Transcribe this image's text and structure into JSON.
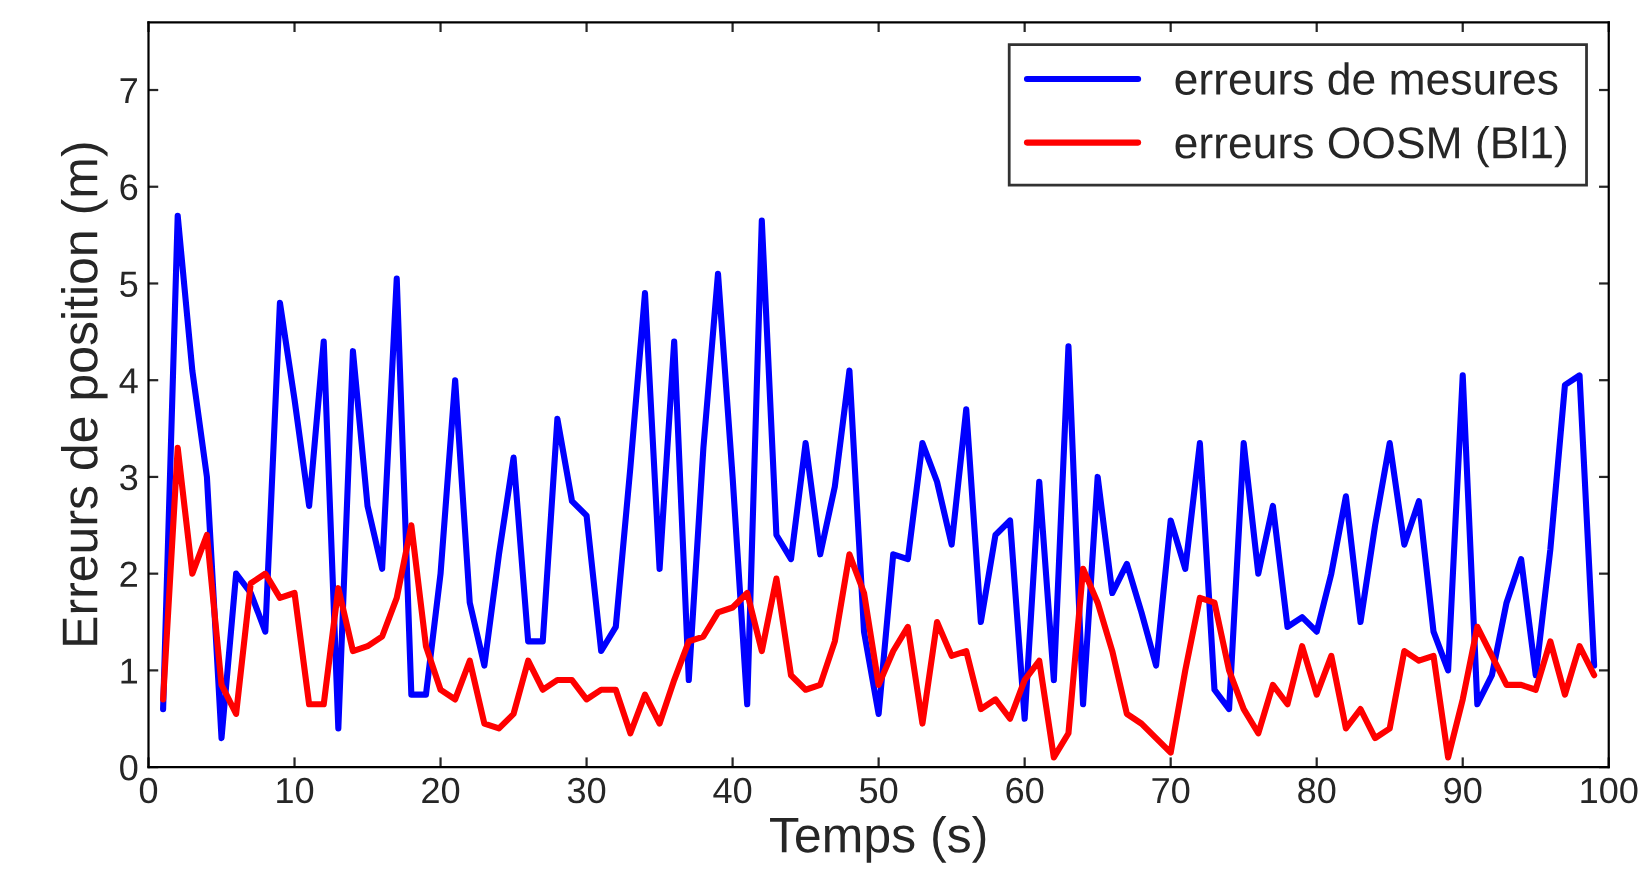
{
  "chart_data": {
    "type": "line",
    "xlabel": "Temps (s)",
    "ylabel": "Erreurs de position (m)",
    "x": [
      1,
      2,
      3,
      4,
      5,
      6,
      7,
      8,
      9,
      10,
      11,
      12,
      13,
      14,
      15,
      16,
      17,
      18,
      19,
      20,
      21,
      22,
      23,
      24,
      25,
      26,
      27,
      28,
      29,
      30,
      31,
      32,
      33,
      34,
      35,
      36,
      37,
      38,
      39,
      40,
      41,
      42,
      43,
      44,
      45,
      46,
      47,
      48,
      49,
      50,
      51,
      52,
      53,
      54,
      55,
      56,
      57,
      58,
      59,
      60,
      61,
      62,
      63,
      64,
      65,
      66,
      67,
      68,
      69,
      70,
      71,
      72,
      73,
      74,
      75,
      76,
      77,
      78,
      79,
      80,
      81,
      82,
      83,
      84,
      85,
      86,
      87,
      88,
      89,
      90,
      91,
      92,
      93,
      94,
      95,
      96,
      97,
      98,
      99
    ],
    "series": [
      {
        "name": "erreurs de mesures",
        "color": "#0000ff",
        "values": [
          0.6,
          5.7,
          4.1,
          3.0,
          0.3,
          2.0,
          1.8,
          1.4,
          4.8,
          3.8,
          2.7,
          4.4,
          0.4,
          4.3,
          2.7,
          2.05,
          5.05,
          0.75,
          0.75,
          2.0,
          4.0,
          1.7,
          1.05,
          2.2,
          3.2,
          1.3,
          1.3,
          3.6,
          2.75,
          2.6,
          1.2,
          1.45,
          3.1,
          4.9,
          2.05,
          4.4,
          0.9,
          3.3,
          5.1,
          3.0,
          0.65,
          5.65,
          2.4,
          2.15,
          3.35,
          2.2,
          2.9,
          4.1,
          1.4,
          0.55,
          2.2,
          2.15,
          3.35,
          2.95,
          2.3,
          3.7,
          1.5,
          2.4,
          2.55,
          0.5,
          2.95,
          0.9,
          4.35,
          0.65,
          3.0,
          1.8,
          2.1,
          1.6,
          1.05,
          2.55,
          2.05,
          3.35,
          0.8,
          0.6,
          3.35,
          2.0,
          2.7,
          1.45,
          1.55,
          1.4,
          2.0,
          2.8,
          1.5,
          2.5,
          3.35,
          2.3,
          2.75,
          1.4,
          1.0,
          4.05,
          0.65,
          0.95,
          1.7,
          2.15,
          0.95,
          2.25,
          3.95,
          4.05,
          1.05
        ]
      },
      {
        "name": "erreurs OOSM (Bl1)",
        "color": "#ff0000",
        "values": [
          0.7,
          3.3,
          2.0,
          2.4,
          0.85,
          0.55,
          1.9,
          2.0,
          1.75,
          1.8,
          0.65,
          0.65,
          1.85,
          1.2,
          1.25,
          1.35,
          1.75,
          2.5,
          1.25,
          0.8,
          0.7,
          1.1,
          0.45,
          0.4,
          0.55,
          1.1,
          0.8,
          0.9,
          0.9,
          0.7,
          0.8,
          0.8,
          0.35,
          0.75,
          0.45,
          0.9,
          1.3,
          1.35,
          1.6,
          1.65,
          1.8,
          1.2,
          1.95,
          0.95,
          0.8,
          0.85,
          1.3,
          2.2,
          1.8,
          0.85,
          1.2,
          1.45,
          0.45,
          1.5,
          1.15,
          1.2,
          0.6,
          0.7,
          0.5,
          0.9,
          1.1,
          0.1,
          0.35,
          2.05,
          1.7,
          1.2,
          0.55,
          0.45,
          0.3,
          0.15,
          1.0,
          1.75,
          1.7,
          1.0,
          0.6,
          0.35,
          0.85,
          0.65,
          1.25,
          0.75,
          1.15,
          0.4,
          0.6,
          0.3,
          0.4,
          1.2,
          1.1,
          1.15,
          0.1,
          0.7,
          1.45,
          1.15,
          0.85,
          0.85,
          0.8,
          1.3,
          0.75,
          1.25,
          0.95
        ]
      }
    ],
    "xlim": [
      0,
      100
    ],
    "xticks": [
      0,
      10,
      20,
      30,
      40,
      50,
      60,
      70,
      80,
      90,
      100
    ],
    "ylim": [
      0,
      7.7
    ],
    "yticks": [
      0,
      1,
      2,
      3,
      4,
      5,
      6,
      7
    ],
    "legend": "top right",
    "grid": false
  }
}
